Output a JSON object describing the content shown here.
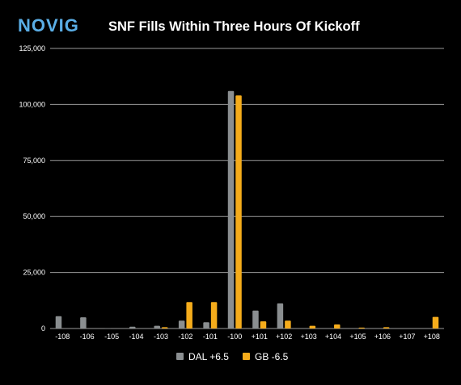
{
  "header": {
    "logo_text": "NOVIG",
    "title": "SNF Fills Within Three Hours Of Kickoff"
  },
  "colors": {
    "background": "#000000",
    "logo": "#5aaee6",
    "grid": "#9a9a9a",
    "text": "#ffffff"
  },
  "chart_data": {
    "type": "bar",
    "title": "SNF Fills Within Three Hours Of Kickoff",
    "xlabel": "",
    "ylabel": "",
    "categories": [
      "-108",
      "-106",
      "-105",
      "-104",
      "-103",
      "-102",
      "-101",
      "-100",
      "+101",
      "+102",
      "+103",
      "+104",
      "+105",
      "+106",
      "+107",
      "+108"
    ],
    "ylim": [
      0,
      125000
    ],
    "yticks": [
      0,
      25000,
      50000,
      75000,
      100000,
      125000
    ],
    "ytick_labels": [
      "0",
      "25,000",
      "50,000",
      "75,000",
      "100,000",
      "125,000"
    ],
    "grid": true,
    "legend_position": "bottom-center",
    "series": [
      {
        "name": "DAL +6.5",
        "color": "#8a8e90",
        "values": [
          5500,
          5000,
          200,
          800,
          1200,
          3500,
          2800,
          106000,
          8000,
          11200,
          0,
          0,
          0,
          0,
          0,
          0
        ]
      },
      {
        "name": "GB -6.5",
        "color": "#f5ac1b",
        "values": [
          0,
          0,
          0,
          0,
          600,
          11800,
          11800,
          104000,
          3200,
          3500,
          1200,
          1800,
          400,
          600,
          0,
          5200
        ]
      }
    ]
  }
}
